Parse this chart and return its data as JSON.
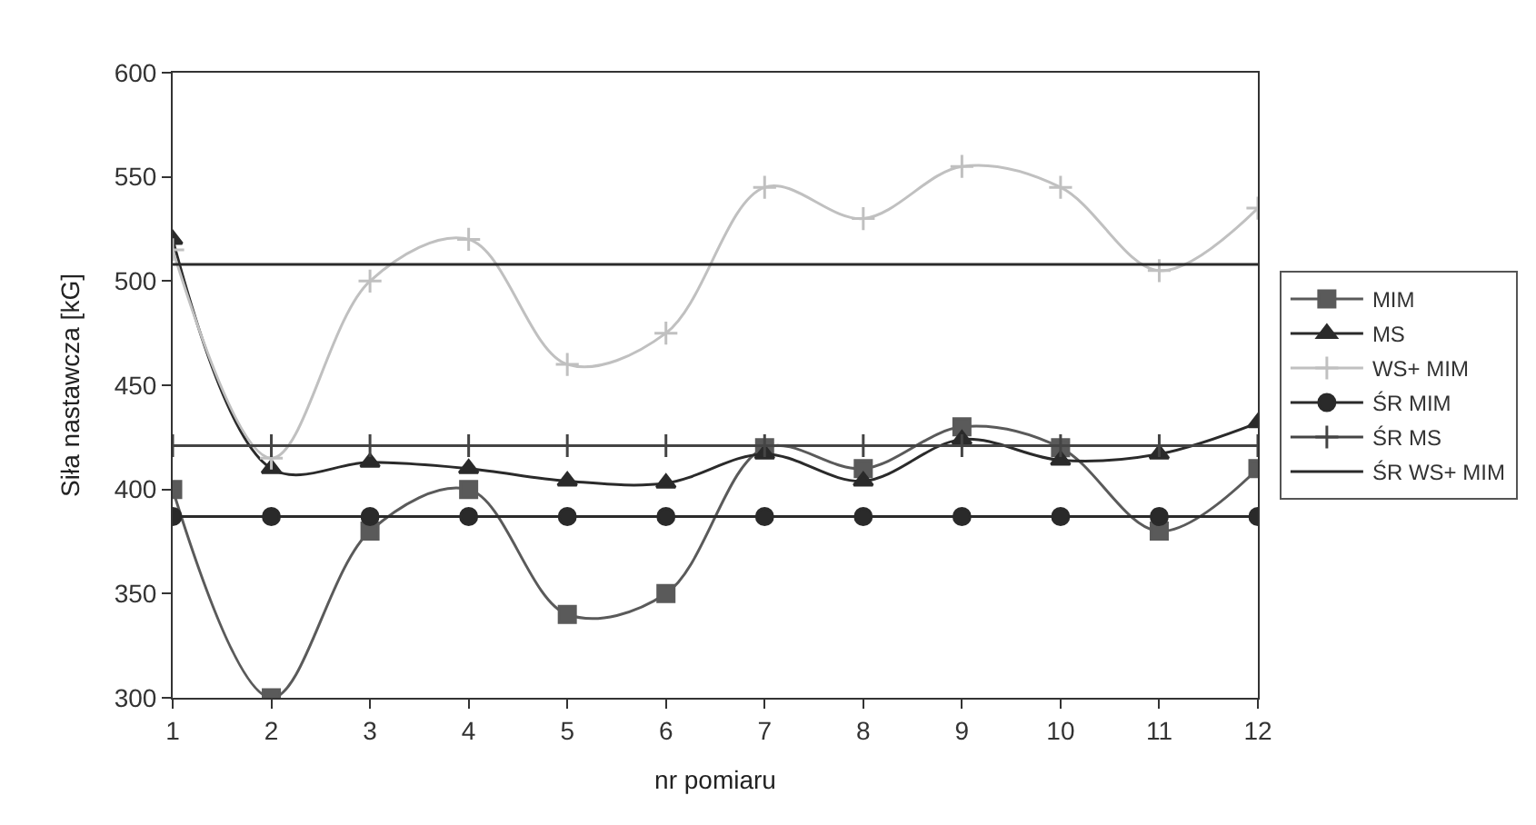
{
  "chart_data": {
    "type": "line",
    "xlabel": "nr pomiaru",
    "ylabel": "Siła nastawcza [kG]",
    "x": [
      1,
      2,
      3,
      4,
      5,
      6,
      7,
      8,
      9,
      10,
      11,
      12
    ],
    "xlim": [
      1,
      12
    ],
    "xticks": [
      1,
      2,
      3,
      4,
      5,
      6,
      7,
      8,
      9,
      10,
      11,
      12
    ],
    "ylim": [
      300,
      600
    ],
    "yticks": [
      300,
      350,
      400,
      450,
      500,
      550,
      600
    ],
    "legend": "right",
    "series": [
      {
        "name": "MIM",
        "color": "#5a5a5a",
        "marker": "square",
        "values": [
          400,
          300,
          380,
          400,
          340,
          350,
          420,
          410,
          430,
          420,
          380,
          410
        ]
      },
      {
        "name": "MS",
        "color": "#2a2a2a",
        "marker": "triangle",
        "values": [
          520,
          410,
          413,
          410,
          404,
          403,
          417,
          404,
          424,
          414,
          417,
          432
        ]
      },
      {
        "name": "WS+ MIM",
        "color": "#c0c0c0",
        "marker": "cross",
        "values": [
          515,
          415,
          500,
          520,
          460,
          475,
          545,
          530,
          555,
          545,
          505,
          535
        ]
      },
      {
        "name": "ŚR MIM",
        "color": "#2a2a2a",
        "marker": "circle",
        "values": [
          387,
          387,
          387,
          387,
          387,
          387,
          387,
          387,
          387,
          387,
          387,
          387
        ]
      },
      {
        "name": "ŚR MS",
        "color": "#444444",
        "marker": "cross",
        "values": [
          421,
          421,
          421,
          421,
          421,
          421,
          421,
          421,
          421,
          421,
          421,
          421
        ]
      },
      {
        "name": "ŚR WS+ MIM",
        "color": "#2a2a2a",
        "marker": "none",
        "values": [
          508,
          508,
          508,
          508,
          508,
          508,
          508,
          508,
          508,
          508,
          508,
          508
        ]
      }
    ]
  }
}
